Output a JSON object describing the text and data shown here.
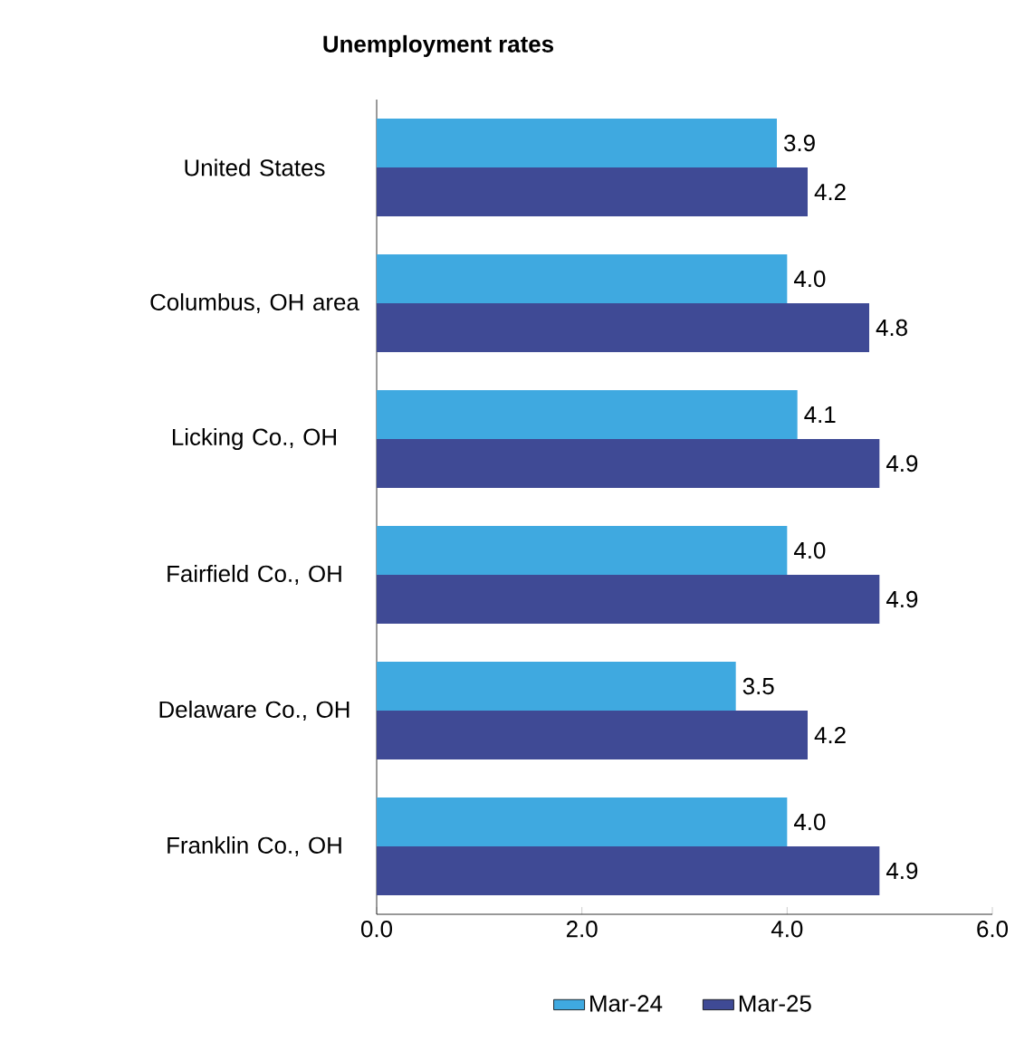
{
  "chart_data": {
    "type": "bar",
    "orientation": "horizontal",
    "title": "Unemployment rates",
    "categories": [
      "United States",
      "Columbus, OH area",
      "Licking Co., OH",
      "Fairfield Co., OH",
      "Delaware Co., OH",
      "Franklin Co., OH"
    ],
    "series": [
      {
        "name": "Mar-24",
        "color": "#3fa9e0",
        "values": [
          3.9,
          4.0,
          4.1,
          4.0,
          3.5,
          4.0
        ],
        "value_labels": [
          "3.9",
          "4.0",
          "4.1",
          "4.0",
          "3.5",
          "4.0"
        ]
      },
      {
        "name": "Mar-25",
        "color": "#3f4a95",
        "values": [
          4.2,
          4.8,
          4.9,
          4.9,
          4.2,
          4.9
        ],
        "value_labels": [
          "4.2",
          "4.8",
          "4.9",
          "4.9",
          "4.2",
          "4.9"
        ]
      }
    ],
    "xlim": [
      0,
      6
    ],
    "xticks": [
      {
        "value": 0,
        "label": "0.0"
      },
      {
        "value": 2,
        "label": "2.0"
      },
      {
        "value": 4,
        "label": "4.0"
      },
      {
        "value": 6,
        "label": "6.0"
      }
    ],
    "grid": false,
    "legend": "bottom"
  }
}
